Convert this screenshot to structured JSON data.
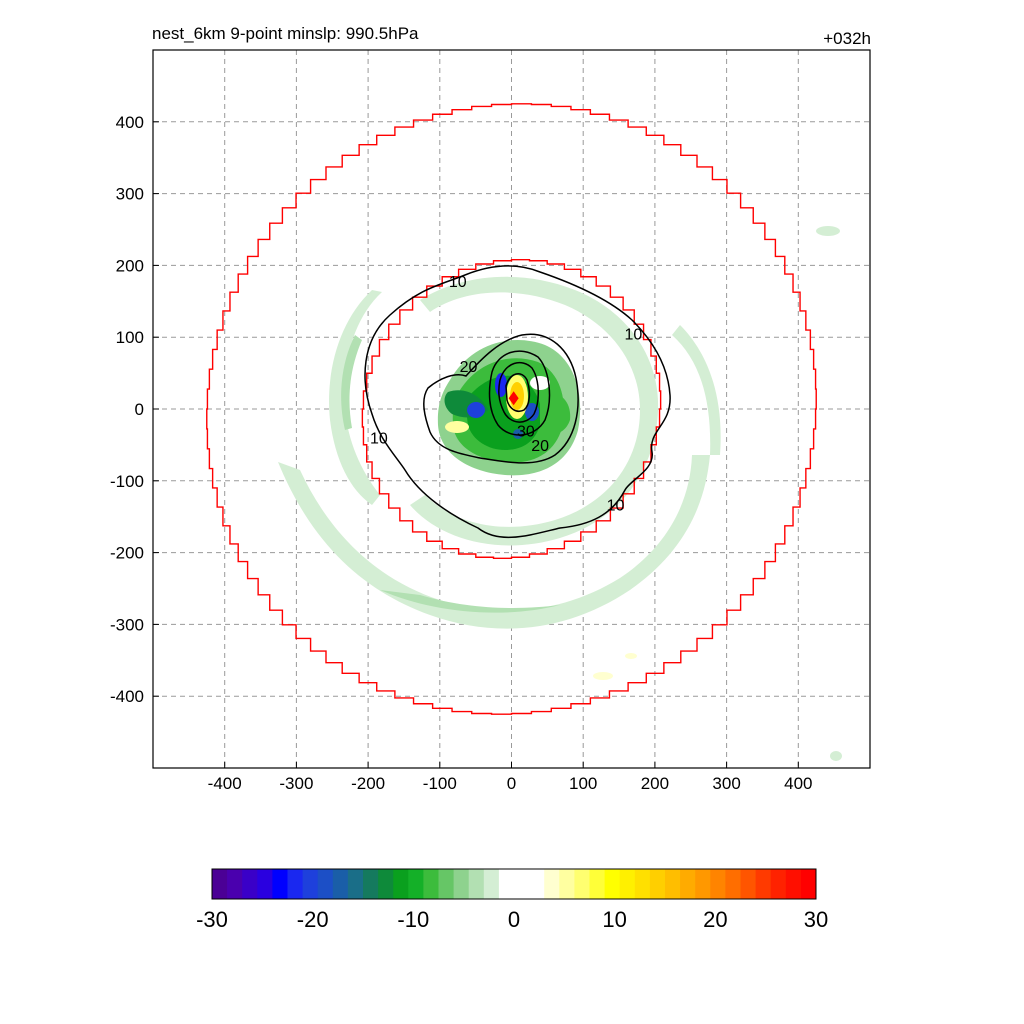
{
  "header": {
    "title": "nest_6km  9-point minslp: 990.5hPa",
    "time": "+032h"
  },
  "chart_data": {
    "type": "heatmap",
    "xlim": [
      -500,
      500
    ],
    "ylim": [
      -500,
      500
    ],
    "x_ticks": [
      -400,
      -300,
      -200,
      -100,
      0,
      100,
      200,
      300,
      400
    ],
    "y_ticks": [
      400,
      300,
      200,
      100,
      0,
      -100,
      -200,
      -300,
      -400
    ],
    "grid": true,
    "center_marker": {
      "x": 3,
      "y": 15,
      "color": "#ff0000"
    },
    "contour_labels": [
      {
        "text": "10",
        "x": -75,
        "y": 178
      },
      {
        "text": "10",
        "x": 170,
        "y": 105
      },
      {
        "text": "10",
        "x": -185,
        "y": -40
      },
      {
        "text": "10",
        "x": 145,
        "y": -133
      },
      {
        "text": "20",
        "x": -60,
        "y": 60
      },
      {
        "text": "20",
        "x": 40,
        "y": -50
      },
      {
        "text": "30",
        "x": 20,
        "y": -30
      }
    ],
    "colorbar": {
      "range": [
        -30,
        30
      ],
      "tick_labels": [
        "-30",
        "-20",
        "-10",
        "0",
        "10",
        "20",
        "30"
      ],
      "colors": [
        "#4b0095",
        "#4a00ae",
        "#3a00c8",
        "#2a00e0",
        "#0000ff",
        "#1a28f0",
        "#1e40dc",
        "#1c4fc6",
        "#1a5ea8",
        "#1a6e88",
        "#157a5e",
        "#0e8a3a",
        "#0aa01e",
        "#14b028",
        "#3cbc3c",
        "#66c666",
        "#8ed28e",
        "#b2e0b2",
        "#d4eed4",
        "#ffffff",
        "#ffffff",
        "#ffffff",
        "#ffffd0",
        "#ffffa0",
        "#ffff70",
        "#ffff38",
        "#ffff00",
        "#fff000",
        "#ffe000",
        "#ffcf00",
        "#ffbe00",
        "#ffab00",
        "#ff9800",
        "#ff8400",
        "#ff6e00",
        "#ff5500",
        "#ff3a00",
        "#ff2200",
        "#ff0f00",
        "#ff0000"
      ]
    }
  }
}
